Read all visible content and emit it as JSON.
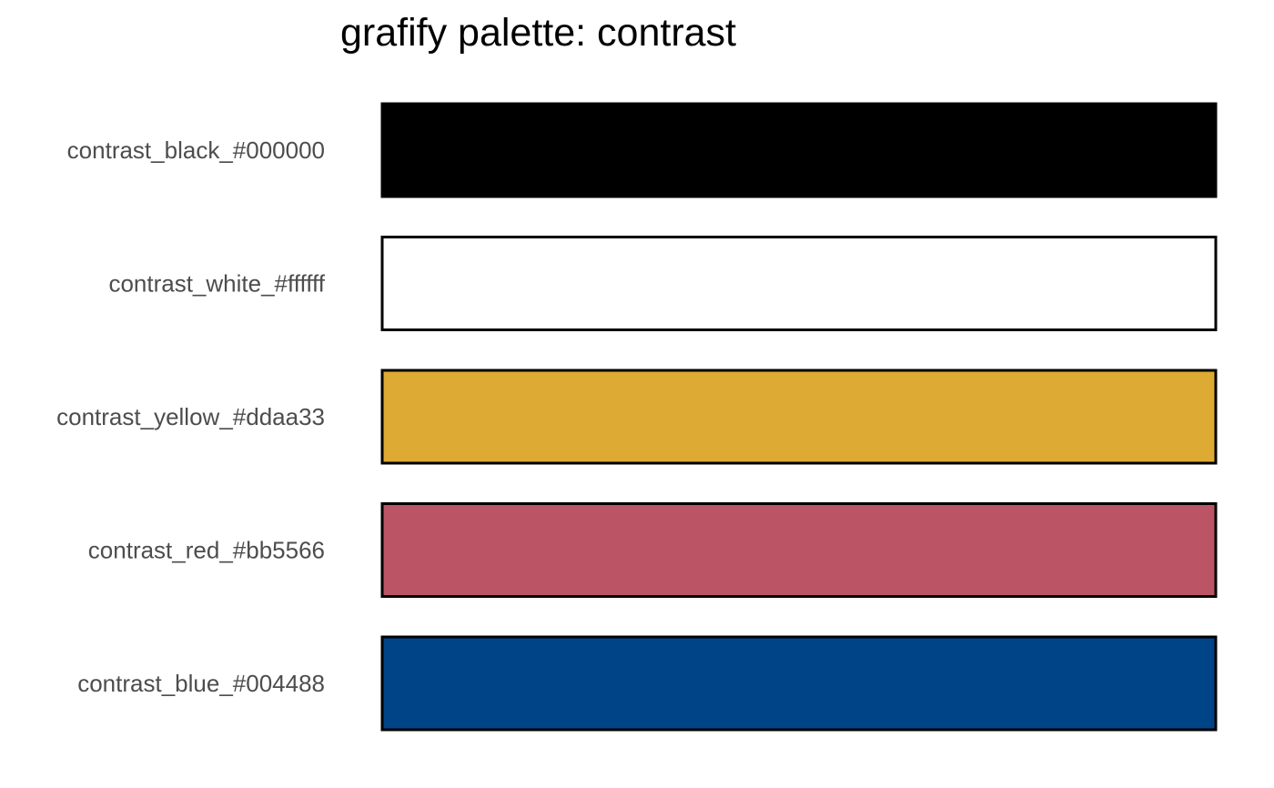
{
  "chart_data": {
    "type": "bar",
    "orientation": "horizontal",
    "title": "grafify palette: contrast",
    "categories": [
      "contrast_black_#000000",
      "contrast_white_#ffffff",
      "contrast_yellow_#ddaa33",
      "contrast_red_#bb5566",
      "contrast_blue_#004488"
    ],
    "values": [
      1,
      1,
      1,
      1,
      1
    ],
    "colors": [
      "#000000",
      "#ffffff",
      "#ddaa33",
      "#bb5566",
      "#004488"
    ],
    "bar_outline_color": "#000000",
    "xlabel": "",
    "ylabel": "",
    "grid": false,
    "axes_visible": false,
    "legend": "none"
  }
}
